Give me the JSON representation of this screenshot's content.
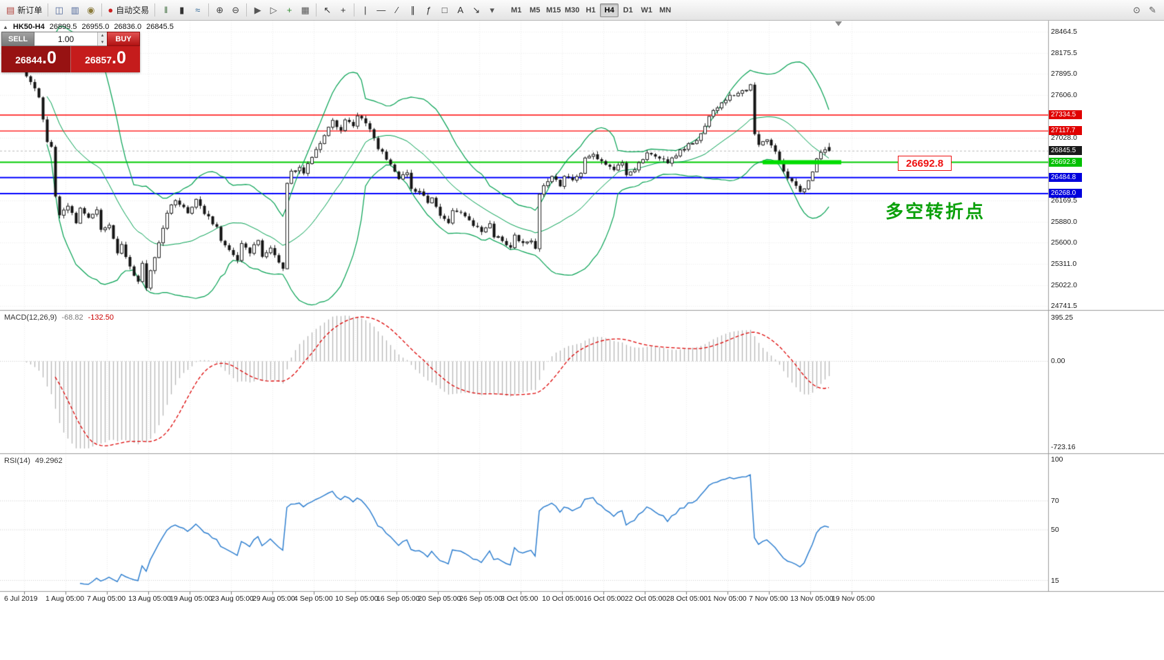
{
  "toolbar": {
    "groups": [
      {
        "items": [
          {
            "name": "new-order-button",
            "icon": "new-order-icon",
            "glyph": "▤",
            "color": "#b0413b",
            "label": "新订单"
          }
        ]
      },
      {
        "items": [
          {
            "name": "chart-windows-button",
            "icon": "tile-windows-icon",
            "glyph": "◫",
            "color": "#51699b"
          },
          {
            "name": "profiles-button",
            "icon": "profiles-icon",
            "glyph": "▥",
            "color": "#51699b"
          },
          {
            "name": "alerts-button",
            "icon": "bell-icon",
            "glyph": "◉",
            "color": "#8a7a3a"
          }
        ]
      },
      {
        "items": [
          {
            "name": "autotrading-button",
            "icon": "autotrading-icon",
            "glyph": "●",
            "color": "#cc2222",
            "label": "自动交易"
          }
        ]
      },
      {
        "items": [
          {
            "name": "bar-chart-button",
            "icon": "bar-chart-icon",
            "glyph": "‖",
            "color": "#3a6a3a"
          },
          {
            "name": "candlestick-button",
            "icon": "candlestick-icon",
            "glyph": "▮",
            "color": "#333333"
          },
          {
            "name": "line-chart-button",
            "icon": "line-chart-icon",
            "glyph": "≈",
            "color": "#336a99"
          }
        ]
      },
      {
        "items": [
          {
            "name": "zoom-in-button",
            "icon": "zoom-in-icon",
            "glyph": "⊕",
            "color": "#444444"
          },
          {
            "name": "zoom-out-button",
            "icon": "zoom-out-icon",
            "glyph": "⊖",
            "color": "#444444"
          }
        ]
      },
      {
        "items": [
          {
            "name": "auto-scroll-button",
            "icon": "auto-scroll-icon",
            "glyph": "▶",
            "color": "#555555"
          },
          {
            "name": "chart-shift-button",
            "icon": "chart-shift-icon",
            "glyph": "▷",
            "color": "#555555"
          },
          {
            "name": "indicators-button",
            "icon": "indicators-icon",
            "glyph": "+",
            "color": "#2d8a2d"
          },
          {
            "name": "templates-button",
            "icon": "templates-icon",
            "glyph": "▦",
            "color": "#555555"
          }
        ]
      },
      {
        "items": [
          {
            "name": "cursor-button",
            "icon": "cursor-icon",
            "glyph": "↖",
            "color": "#333333"
          },
          {
            "name": "crosshair-button",
            "icon": "crosshair-icon",
            "glyph": "+",
            "color": "#333333"
          }
        ]
      },
      {
        "items": [
          {
            "name": "vertical-line-button",
            "icon": "vertical-line-icon",
            "glyph": "|",
            "color": "#333333"
          },
          {
            "name": "horizontal-line-button",
            "icon": "horizontal-line-icon",
            "glyph": "—",
            "color": "#333333"
          },
          {
            "name": "trendline-button",
            "icon": "trendline-icon",
            "glyph": "∕",
            "color": "#333333"
          },
          {
            "name": "channel-button",
            "icon": "channel-icon",
            "glyph": "∥",
            "color": "#333333"
          },
          {
            "name": "fibonacci-button",
            "icon": "fibonacci-icon",
            "glyph": "ƒ",
            "color": "#333333"
          },
          {
            "name": "shapes-button",
            "icon": "shapes-icon",
            "glyph": "□",
            "color": "#333333"
          },
          {
            "name": "text-button",
            "icon": "text-icon",
            "glyph": "A",
            "color": "#333333"
          },
          {
            "name": "arrow-tool-button",
            "icon": "arrow-tool-icon",
            "glyph": "↘",
            "color": "#333333"
          },
          {
            "name": "arrows-dropdown",
            "icon": "chevron-down-icon",
            "glyph": "▾",
            "color": "#555555"
          }
        ]
      }
    ],
    "timeframes": {
      "items": [
        "M1",
        "M5",
        "M15",
        "M30",
        "H1",
        "H4",
        "D1",
        "W1",
        "MN"
      ],
      "active": "H4"
    },
    "right_items": [
      {
        "name": "find-symbol-button",
        "icon": "search-icon",
        "glyph": "⊙",
        "color": "#555555"
      },
      {
        "name": "quick-edit-button",
        "icon": "pencil-icon",
        "glyph": "✎",
        "color": "#555555"
      }
    ]
  },
  "symbol_bar": {
    "collapse_glyph": "▲",
    "symbol": "HK50-H4",
    "open": "26899.5",
    "high": "26955.0",
    "low": "26836.0",
    "close": "26845.5"
  },
  "trade_panel": {
    "sell_label": "SELL",
    "buy_label": "BUY",
    "volume": "1.00",
    "spin_up_glyph": "▴",
    "spin_down_glyph": "▾",
    "bid_int": "26844",
    "bid_frac": ".0",
    "ask_int": "26857",
    "ask_frac": ".0"
  },
  "chart_data": {
    "type": "candlestick",
    "symbol": "HK50-",
    "timeframe": "H4",
    "ohlc": {
      "open": 26899.5,
      "high": 26955.0,
      "low": 26836.0,
      "close": 26845.5
    },
    "last_price": 26845.5,
    "price_scale": {
      "top": 28615.5,
      "bottom": 24705.5
    },
    "candles": {
      "count": 196,
      "anchors": [
        [
          0,
          27950
        ],
        [
          2,
          27800
        ],
        [
          4,
          27550
        ],
        [
          6,
          26950
        ],
        [
          7,
          26880
        ],
        [
          8,
          26250
        ],
        [
          9,
          25980
        ],
        [
          11,
          26120
        ],
        [
          13,
          25880
        ],
        [
          14,
          26060
        ],
        [
          16,
          25940
        ],
        [
          18,
          26040
        ],
        [
          19,
          25780
        ],
        [
          21,
          25840
        ],
        [
          23,
          25480
        ],
        [
          24,
          25580
        ],
        [
          26,
          25260
        ],
        [
          28,
          25080
        ],
        [
          29,
          25340
        ],
        [
          30,
          24980
        ],
        [
          32,
          25420
        ],
        [
          33,
          25600
        ],
        [
          35,
          26020
        ],
        [
          37,
          26180
        ],
        [
          38,
          26120
        ],
        [
          40,
          26000
        ],
        [
          42,
          26190
        ],
        [
          43,
          26080
        ],
        [
          45,
          25950
        ],
        [
          47,
          25800
        ],
        [
          48,
          25620
        ],
        [
          50,
          25500
        ],
        [
          52,
          25360
        ],
        [
          53,
          25580
        ],
        [
          55,
          25480
        ],
        [
          57,
          25640
        ],
        [
          58,
          25420
        ],
        [
          60,
          25520
        ],
        [
          62,
          25320
        ],
        [
          63,
          25260
        ],
        [
          64,
          26420
        ],
        [
          65,
          26560
        ],
        [
          67,
          26640
        ],
        [
          68,
          26540
        ],
        [
          70,
          26780
        ],
        [
          72,
          26950
        ],
        [
          73,
          27060
        ],
        [
          75,
          27240
        ],
        [
          77,
          27140
        ],
        [
          78,
          27280
        ],
        [
          80,
          27200
        ],
        [
          81,
          27340
        ],
        [
          83,
          27230
        ],
        [
          84,
          27130
        ],
        [
          86,
          26890
        ],
        [
          88,
          26740
        ],
        [
          89,
          26640
        ],
        [
          91,
          26460
        ],
        [
          93,
          26550
        ],
        [
          94,
          26340
        ],
        [
          96,
          26290
        ],
        [
          98,
          26140
        ],
        [
          99,
          26200
        ],
        [
          101,
          25990
        ],
        [
          103,
          25890
        ],
        [
          104,
          26040
        ],
        [
          106,
          25990
        ],
        [
          108,
          25890
        ],
        [
          109,
          25840
        ],
        [
          111,
          25740
        ],
        [
          113,
          25850
        ],
        [
          114,
          25690
        ],
        [
          116,
          25640
        ],
        [
          118,
          25540
        ],
        [
          119,
          25690
        ],
        [
          121,
          25590
        ],
        [
          123,
          25640
        ],
        [
          124,
          25540
        ],
        [
          125,
          26240
        ],
        [
          126,
          26390
        ],
        [
          128,
          26490
        ],
        [
          130,
          26390
        ],
        [
          131,
          26490
        ],
        [
          133,
          26440
        ],
        [
          135,
          26540
        ],
        [
          136,
          26740
        ],
        [
          138,
          26790
        ],
        [
          140,
          26690
        ],
        [
          141,
          26640
        ],
        [
          143,
          26590
        ],
        [
          145,
          26690
        ],
        [
          146,
          26540
        ],
        [
          148,
          26590
        ],
        [
          150,
          26740
        ],
        [
          151,
          26840
        ],
        [
          153,
          26790
        ],
        [
          155,
          26740
        ],
        [
          156,
          26690
        ],
        [
          158,
          26790
        ],
        [
          160,
          26890
        ],
        [
          161,
          26940
        ],
        [
          163,
          26990
        ],
        [
          165,
          27190
        ],
        [
          166,
          27340
        ],
        [
          168,
          27440
        ],
        [
          170,
          27540
        ],
        [
          171,
          27590
        ],
        [
          173,
          27640
        ],
        [
          175,
          27690
        ],
        [
          176,
          27740
        ],
        [
          177,
          27090
        ],
        [
          178,
          26940
        ],
        [
          180,
          26990
        ],
        [
          182,
          26840
        ],
        [
          183,
          26690
        ],
        [
          185,
          26490
        ],
        [
          187,
          26390
        ],
        [
          188,
          26290
        ],
        [
          189,
          26340
        ],
        [
          191,
          26540
        ],
        [
          192,
          26740
        ],
        [
          193,
          26840
        ],
        [
          195,
          26845.5
        ]
      ]
    },
    "hlines": [
      {
        "name": "resistance-line-1",
        "price": 27334.5,
        "color": "#ff0000",
        "width": 1.4
      },
      {
        "name": "resistance-line-2",
        "price": 27117.7,
        "color": "#ff0000",
        "width": 1.4
      },
      {
        "name": "pivot-line",
        "price": 26692.8,
        "color": "#00cc00",
        "width": 2
      },
      {
        "name": "support-line-1",
        "price": 26484.8,
        "color": "#0000ff",
        "width": 2
      },
      {
        "name": "support-line-2",
        "price": 26268.0,
        "color": "#0000ff",
        "width": 2
      }
    ],
    "highlight_segment": {
      "price": 26692.8,
      "from_bar": 179,
      "to_bar": 198,
      "color": "#00dd00",
      "width": 6
    },
    "price_axis": {
      "labels": [
        28464.5,
        28175.5,
        27895.0,
        27606.0,
        27028.0,
        26169.5,
        25880.0,
        25600.0,
        25311.0,
        25022.0,
        24741.5
      ],
      "badges": [
        {
          "name": "resistance-1",
          "value": "27334.5",
          "price": 27334.5,
          "color": "#e00000"
        },
        {
          "name": "resistance-2",
          "value": "27117.7",
          "price": 27117.7,
          "color": "#e00000"
        },
        {
          "name": "current-price",
          "value": "26845.5",
          "price": 26845.5,
          "color": "#1a1a1a"
        },
        {
          "name": "pivot",
          "value": "26692.8",
          "price": 26692.8,
          "color": "#00c000"
        },
        {
          "name": "support-1",
          "value": "26484.8",
          "price": 26484.8,
          "color": "#0000dd"
        },
        {
          "name": "support-2",
          "value": "26268.0",
          "price": 26268.0,
          "color": "#0000dd"
        }
      ]
    },
    "macd": {
      "title": "MACD(12,26,9)",
      "value_main": "-68.82",
      "value_signal": "-132.50",
      "axis": [
        "395.25",
        "0.00",
        "-723.16"
      ],
      "zero_ratio": 0.3534
    },
    "rsi": {
      "title": "RSI(14)",
      "value": "49.2962",
      "axis": [
        {
          "value": 100,
          "label": "100"
        },
        {
          "value": 70,
          "label": "70"
        },
        {
          "value": 50,
          "label": "50"
        },
        {
          "value": 15,
          "label": "15"
        }
      ]
    },
    "date_axis": [
      "6 Jul 2019",
      "1 Aug 05:00",
      "7 Aug 05:00",
      "13 Aug 05:00",
      "19 Aug 05:00",
      "23 Aug 05:00",
      "29 Aug 05:00",
      "4 Sep 05:00",
      "10 Sep 05:00",
      "16 Sep 05:00",
      "20 Sep 05:00",
      "26 Sep 05:00",
      "3 Oct 05:00",
      "10 Oct 05:00",
      "16 Oct 05:00",
      "22 Oct 05:00",
      "28 Oct 05:00",
      "1 Nov 05:00",
      "7 Nov 05:00",
      "13 Nov 05:00",
      "19 Nov 05:00"
    ],
    "annotations": {
      "price_label": {
        "text": "26692.8",
        "color": "#ee1111"
      },
      "note": {
        "text": "多空转折点",
        "color": "#0aa00a"
      }
    },
    "style": {
      "bull": "#ffffff",
      "bear": "#141414",
      "outline": "#222222",
      "bollinger": "#00a050",
      "macd_hist": "#b6b6b6",
      "macd_signal": "#dd0000",
      "rsi_line": "#2e7fd0",
      "grid": "#ededed"
    }
  }
}
